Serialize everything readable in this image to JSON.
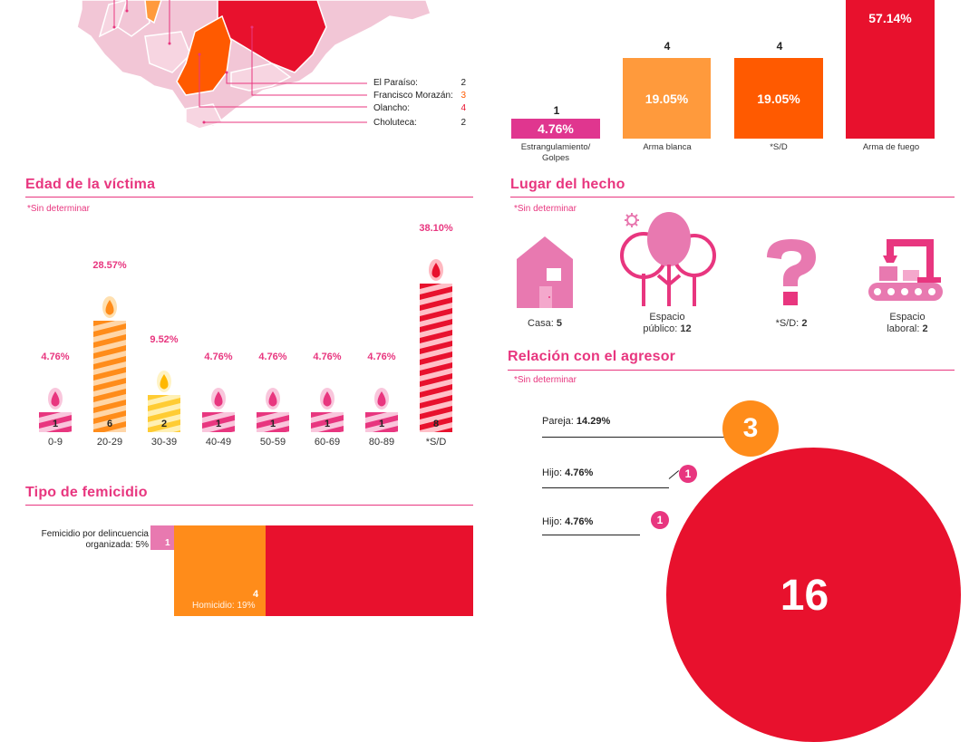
{
  "colors": {
    "accent": "#e8367f",
    "red": "#e8112d",
    "orange": "#ff5a00",
    "light_orange": "#ff8c1a",
    "yellow": "#ffcc33",
    "pink_map": "#f2c6d6"
  },
  "map_legend": [
    {
      "name": "El Paraíso:",
      "value": "2",
      "color": "#222"
    },
    {
      "name": "Francisco Morazán:",
      "value": "3",
      "color": "#ff5a00"
    },
    {
      "name": "Olancho:",
      "value": "4",
      "color": "#e8112d"
    },
    {
      "name": "Choluteca:",
      "value": "2",
      "color": "#222"
    }
  ],
  "weapons": [
    {
      "count": "1",
      "pct": "4.76%",
      "label": "Estrangulamiento/\nGolpes",
      "color": "#e0368f",
      "share": 4.76
    },
    {
      "count": "4",
      "pct": "19.05%",
      "label": "Arma blanca",
      "color": "#ff9a3c",
      "share": 19.05
    },
    {
      "count": "4",
      "pct": "19.05%",
      "label": "*S/D",
      "color": "#ff5a00",
      "share": 19.05
    },
    {
      "count": "",
      "pct": "57.14%",
      "label": "Arma de fuego",
      "color": "#e8112d",
      "share": 57.14
    }
  ],
  "age": {
    "title": "Edad de la víctima",
    "note": "*Sin determinar",
    "groups": [
      {
        "label": "0-9",
        "count": "1",
        "pct": "4.76%",
        "color": "pink"
      },
      {
        "label": "20-29",
        "count": "6",
        "pct": "28.57%",
        "color": "orange"
      },
      {
        "label": "30-39",
        "count": "2",
        "pct": "9.52%",
        "color": "yellow"
      },
      {
        "label": "40-49",
        "count": "1",
        "pct": "4.76%",
        "color": "pink"
      },
      {
        "label": "50-59",
        "count": "1",
        "pct": "4.76%",
        "color": "pink"
      },
      {
        "label": "60-69",
        "count": "1",
        "pct": "4.76%",
        "color": "pink"
      },
      {
        "label": "80-89",
        "count": "1",
        "pct": "4.76%",
        "color": "pink"
      },
      {
        "label": "*S/D",
        "count": "8",
        "pct": "38.10%",
        "color": "red"
      }
    ]
  },
  "place": {
    "title": "Lugar del hecho",
    "note": "*Sin determinar",
    "items": [
      {
        "label": "Casa:",
        "value": "5"
      },
      {
        "label": "Espacio\npúblico:",
        "value": "12"
      },
      {
        "label": "*S/D:",
        "value": "2"
      },
      {
        "label": "Espacio\nlaboral:",
        "value": "2"
      }
    ]
  },
  "type": {
    "title": "Tipo de femicidio",
    "items": [
      {
        "label": "Femicidio por delincuencia\norganizada: 5%",
        "count": "1"
      },
      {
        "label": "Homicidio: 19%",
        "count": "4"
      }
    ]
  },
  "relation": {
    "title": "Relación con el agresor",
    "note": "*Sin determinar",
    "items": [
      {
        "name": "Pareja:",
        "pct": "14.29%",
        "count": "3"
      },
      {
        "name": "Hijo:",
        "pct": "4.76%",
        "count": "1"
      },
      {
        "name": "Hijo:",
        "pct": "4.76%",
        "count": "1"
      }
    ],
    "big_count": "16"
  }
}
